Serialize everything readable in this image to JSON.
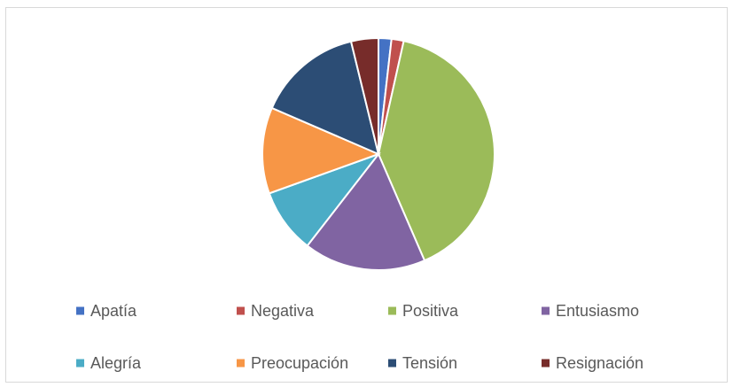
{
  "chart_data": {
    "type": "pie",
    "categories": [
      "Apatía",
      "Negativa",
      "Positiva",
      "Entusiasmo",
      "Alegría",
      "Preocupación",
      "Tensión",
      "Resignación"
    ],
    "values": [
      1.8,
      1.7,
      40,
      17,
      9,
      12,
      14.7,
      3.8
    ],
    "colors": [
      "#4472c4",
      "#c0504d",
      "#9bbb59",
      "#8064a2",
      "#4bacc6",
      "#f79646",
      "#2c4d75",
      "#772c2a"
    ],
    "legend": "bottom"
  }
}
